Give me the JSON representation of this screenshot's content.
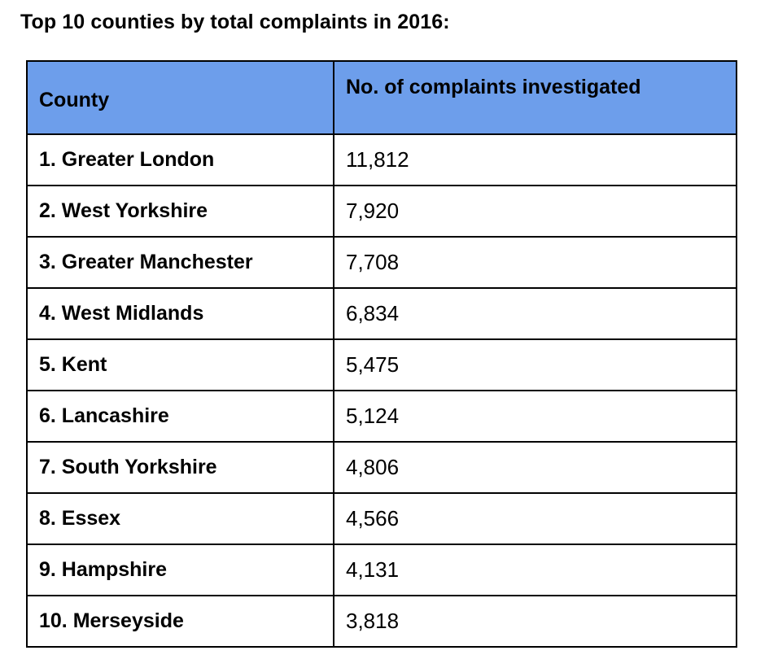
{
  "title": "Top 10 counties by total complaints in 2016:",
  "table": {
    "headers": {
      "county": "County",
      "count": "No. of complaints investigated"
    },
    "rows": [
      {
        "county": "1. Greater London",
        "count": "11,812"
      },
      {
        "county": "2. West Yorkshire",
        "count": "7,920"
      },
      {
        "county": "3. Greater Manchester",
        "count": "7,708"
      },
      {
        "county": "4. West Midlands",
        "count": "6,834"
      },
      {
        "county": "5. Kent",
        "count": "5,475"
      },
      {
        "county": "6. Lancashire",
        "count": "5,124"
      },
      {
        "county": "7. South Yorkshire",
        "count": "4,806"
      },
      {
        "county": "8. Essex",
        "count": "4,566"
      },
      {
        "county": "9. Hampshire",
        "count": "4,131"
      },
      {
        "county": "10. Merseyside",
        "count": "3,818"
      }
    ]
  },
  "colors": {
    "header_background": "#6d9eeb",
    "border": "#000000"
  }
}
